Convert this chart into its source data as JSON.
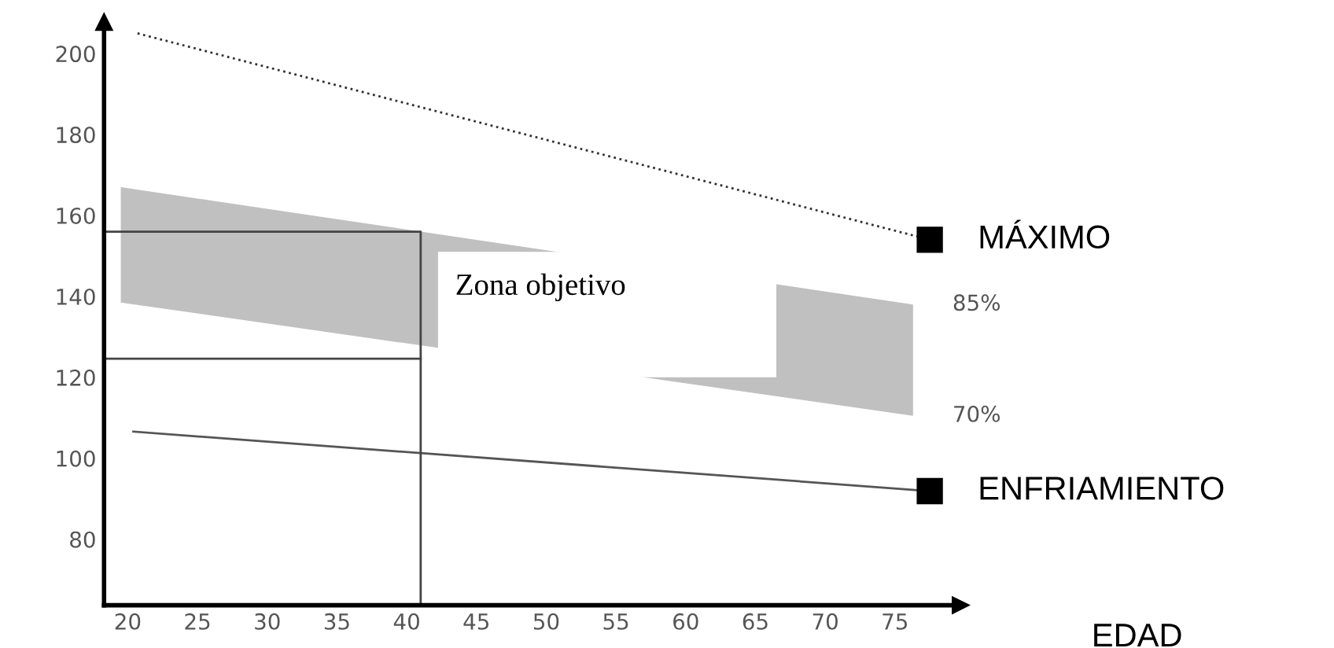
{
  "chart_data": {
    "type": "line",
    "xlabel": "EDAD",
    "xlim": [
      18.3,
      79.7
    ],
    "ylim": [
      63.7,
      207.8
    ],
    "xticks": [
      20,
      25,
      30,
      35,
      40,
      45,
      50,
      55,
      60,
      65,
      70,
      75
    ],
    "yticks": [
      80,
      100,
      120,
      140,
      160,
      180,
      200
    ],
    "grid": false,
    "legend": false,
    "series": [
      {
        "name": "MÁXIMO",
        "color": "#333333",
        "line_style": "dotted",
        "marker": "square",
        "x": [
          20.7,
          77.5
        ],
        "values": [
          205,
          154
        ]
      },
      {
        "name": "ENFRIAMIENTO",
        "color": "#555555",
        "line_style": "solid",
        "marker": "square",
        "x": [
          20.4,
          77.5
        ],
        "values": [
          106.6,
          91.9
        ]
      },
      {
        "color": "#c0c0c0",
        "x": [
          19.5,
          76.3
        ],
        "values": [
          null,
          null
        ],
        "lower": [
          138.5,
          110.5
        ],
        "upper": [
          167,
          138
        ]
      },
      {
        "color": "#444444",
        "line_style": "solid",
        "marker": "none",
        "x": [
          18.3,
          41,
          41
        ],
        "values": [
          156,
          156,
          63.7
        ]
      },
      {
        "color": "#444444",
        "line_style": "solid",
        "marker": "none",
        "x": [
          18.3,
          41
        ],
        "values": [
          124.6,
          124.6
        ]
      }
    ],
    "annotations": [
      "Zona objetivo",
      {
        "text": "85%",
        "x": 76.3,
        "y": 138
      },
      {
        "text": "70%",
        "x": 76.3,
        "y": 110.5
      }
    ]
  }
}
